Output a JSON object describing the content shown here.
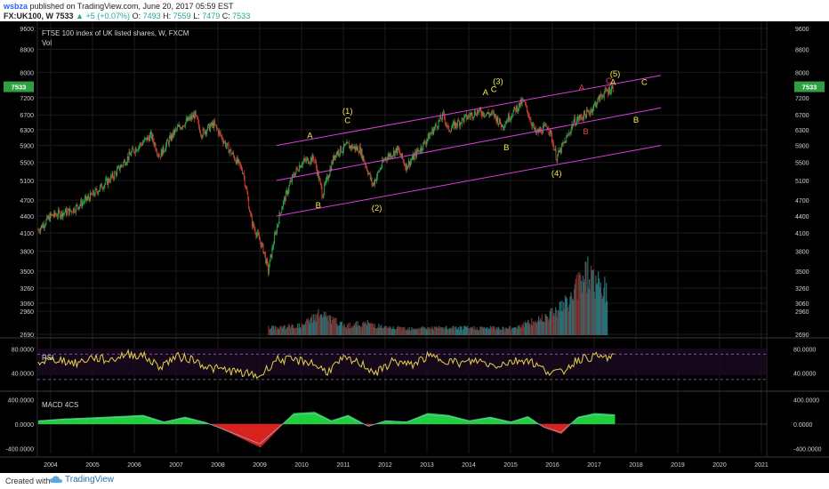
{
  "header": {
    "user": "wsbza",
    "published": "published on TradingView.com, June 20, 2017 05:59 EST",
    "symbol": "FX:UK100, W",
    "price": "7533",
    "change": "+5 (+0.07%)",
    "o_label": "O:",
    "o_value": "7493",
    "h_label": "H:",
    "h_value": "7559",
    "l_label": "L:",
    "l_value": "7479",
    "c_label": "C:",
    "c_value": "7533"
  },
  "footer": {
    "created_with": "Created with",
    "brand": "TradingView"
  },
  "colors": {
    "background": "#000000",
    "grid": "#1b1b1b",
    "candle_up": "#2bbd5a",
    "candle_down": "#e8453c",
    "channel": "#d73ed6",
    "label_yellow": "#f3e84a",
    "label_red": "#e0453e",
    "rsi_line": "#e4d24a",
    "macd_pos": "#1fd13c",
    "macd_neg": "#d9231e",
    "price_badge": "#2ea043"
  },
  "chart_data": [
    {
      "type": "line",
      "panel": "price",
      "title": "FTSE 100 index of UK listed shares, W, FXCM",
      "subtitle": "Vol",
      "y_scale": "log",
      "y_ticks": [
        2690,
        2960,
        3060,
        3260,
        3500,
        3800,
        4100,
        4400,
        4700,
        5100,
        5500,
        5900,
        6300,
        6700,
        7200,
        8000,
        8800,
        9600
      ],
      "ylim": [
        2690,
        9600
      ],
      "x_ticks": [
        "2004",
        "2005",
        "2006",
        "2007",
        "2008",
        "2009",
        "2010",
        "2011",
        "2012",
        "2013",
        "2014",
        "2015",
        "2016",
        "2017",
        "2018",
        "2019",
        "2020",
        "2021"
      ],
      "last_price": "7533",
      "x": [
        2003.7,
        2004.0,
        2004.5,
        2005.0,
        2005.5,
        2006.0,
        2006.4,
        2006.6,
        2007.0,
        2007.45,
        2007.6,
        2007.9,
        2008.2,
        2008.6,
        2008.8,
        2009.1,
        2009.2,
        2009.5,
        2009.8,
        2010.0,
        2010.3,
        2010.5,
        2010.8,
        2011.1,
        2011.4,
        2011.7,
        2012.0,
        2012.3,
        2012.5,
        2012.9,
        2013.4,
        2013.5,
        2013.9,
        2014.2,
        2014.6,
        2014.8,
        2015.0,
        2015.3,
        2015.6,
        2015.9,
        2016.1,
        2016.4,
        2016.5,
        2016.9,
        2017.2,
        2017.47
      ],
      "values": [
        4150,
        4400,
        4500,
        4800,
        5200,
        5800,
        6150,
        5650,
        6300,
        6700,
        6200,
        6450,
        5900,
        5300,
        4300,
        3800,
        3500,
        4500,
        5200,
        5500,
        5600,
        4800,
        5700,
        5900,
        5800,
        5000,
        5600,
        5800,
        5400,
        5900,
        6700,
        6300,
        6600,
        6800,
        6700,
        6400,
        6700,
        7100,
        6200,
        6400,
        5600,
        6200,
        6500,
        6800,
        7300,
        7533
      ]
    },
    {
      "type": "bar",
      "panel": "volume",
      "title": "Vol",
      "x": [
        2009.2,
        2010.0,
        2010.4,
        2011.0,
        2011.6,
        2012.0,
        2013.0,
        2014.0,
        2015.0,
        2015.6,
        2016.0,
        2016.4,
        2016.7,
        2016.9,
        2017.0,
        2017.3
      ],
      "values": [
        3,
        4,
        9,
        4,
        5,
        3,
        3,
        3,
        3,
        6,
        10,
        14,
        25,
        27,
        22,
        18
      ]
    },
    {
      "type": "line",
      "panel": "rsi",
      "title": "RSI",
      "y_ticks": [
        "80.0000",
        "40.0000"
      ],
      "levels": [
        70,
        30
      ],
      "ylim": [
        20,
        90
      ],
      "x": [
        2003.7,
        2004.2,
        2004.6,
        2005.0,
        2005.4,
        2005.8,
        2006.2,
        2006.6,
        2007.0,
        2007.4,
        2007.8,
        2008.2,
        2008.6,
        2009.0,
        2009.4,
        2009.8,
        2010.2,
        2010.6,
        2011.0,
        2011.4,
        2011.8,
        2012.2,
        2012.6,
        2013.0,
        2013.4,
        2013.8,
        2014.2,
        2014.6,
        2015.0,
        2015.4,
        2015.8,
        2016.2,
        2016.6,
        2017.0,
        2017.47
      ],
      "values": [
        58,
        62,
        55,
        65,
        60,
        70,
        68,
        50,
        66,
        62,
        48,
        45,
        40,
        35,
        62,
        60,
        58,
        42,
        62,
        56,
        40,
        60,
        52,
        66,
        62,
        55,
        60,
        52,
        58,
        62,
        45,
        40,
        62,
        66,
        64
      ]
    },
    {
      "type": "area",
      "panel": "macd",
      "title": "MACD 4CS",
      "y_ticks": [
        "400.0000",
        "0.0000",
        "-400.0000"
      ],
      "ylim": [
        -480,
        480
      ],
      "x": [
        2003.7,
        2004.3,
        2005.0,
        2005.6,
        2006.2,
        2006.7,
        2007.2,
        2007.7,
        2008.2,
        2008.6,
        2009.0,
        2009.4,
        2009.8,
        2010.3,
        2010.7,
        2011.1,
        2011.6,
        2012.0,
        2012.5,
        2013.0,
        2013.5,
        2014.0,
        2014.5,
        2015.0,
        2015.4,
        2015.8,
        2016.2,
        2016.6,
        2017.0,
        2017.47
      ],
      "values": [
        60,
        90,
        110,
        130,
        150,
        40,
        120,
        30,
        -120,
        -250,
        -380,
        -100,
        180,
        200,
        60,
        150,
        -40,
        60,
        40,
        180,
        150,
        60,
        120,
        40,
        130,
        -60,
        -160,
        120,
        180,
        160
      ]
    }
  ],
  "annotations": {
    "yellow": [
      "A",
      "(1)",
      "C",
      "B",
      "(2)",
      "A",
      "(3)",
      "C",
      "B",
      "(4)",
      "(5)",
      "A",
      "C",
      "B"
    ],
    "red": [
      "A",
      "C",
      "B"
    ]
  }
}
